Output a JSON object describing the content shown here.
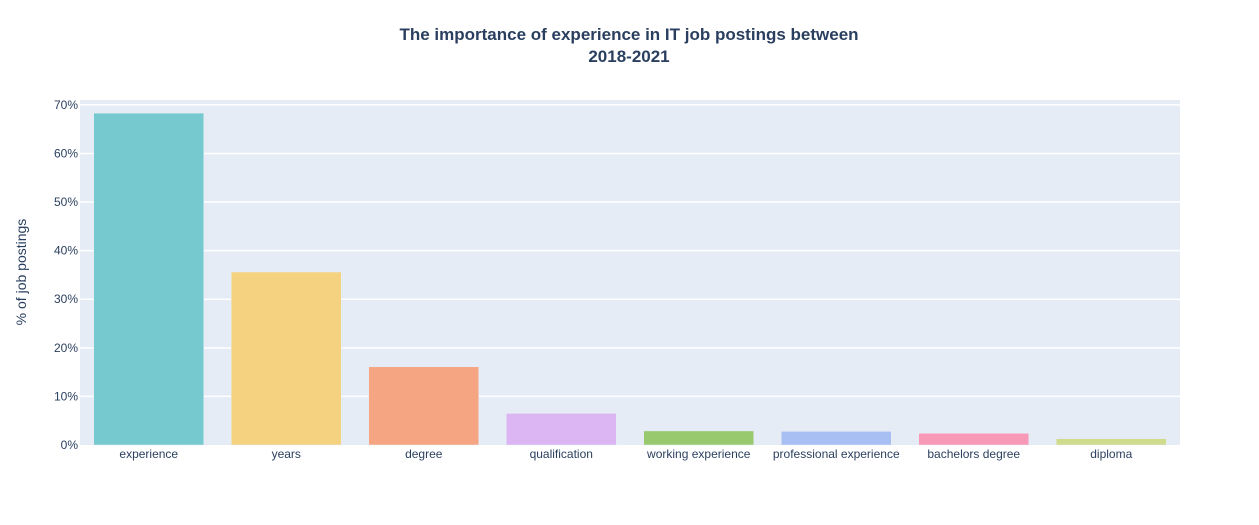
{
  "chart_data": {
    "type": "bar",
    "title_lines": [
      "The importance of experience in IT job postings between",
      "2018-2021"
    ],
    "xlabel": "",
    "ylabel": "% of job postings",
    "ylim": [
      0,
      71
    ],
    "y_ticks": [
      0,
      10,
      20,
      30,
      40,
      50,
      60,
      70
    ],
    "y_tick_labels": [
      "0%",
      "10%",
      "20%",
      "30%",
      "40%",
      "50%",
      "60%",
      "70%"
    ],
    "grid": true,
    "legend": "none",
    "categories": [
      "experience",
      "years",
      "degree",
      "qualification",
      "working experience",
      "professional experience",
      "bachelors degree",
      "diploma"
    ],
    "values": [
      68.3,
      35.6,
      16.1,
      6.5,
      2.9,
      2.8,
      2.4,
      1.3
    ],
    "colors": [
      "#76c9cf",
      "#f5d27f",
      "#f6a582",
      "#dcb5f3",
      "#98c96e",
      "#a7bff3",
      "#f999b8",
      "#cfdc8b"
    ],
    "plot_background": "#e5ecf6"
  }
}
